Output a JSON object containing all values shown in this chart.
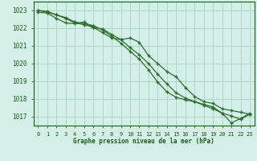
{
  "title": "Graphe pression niveau de la mer (hPa)",
  "background_color": "#d4eee8",
  "grid_color": "#b0d4cc",
  "line_color": "#2d6e2d",
  "text_color": "#1a5c1a",
  "xlim": [
    -0.5,
    23.5
  ],
  "ylim": [
    1016.5,
    1023.5
  ],
  "yticks": [
    1017,
    1018,
    1019,
    1020,
    1021,
    1022,
    1023
  ],
  "xticks": [
    0,
    1,
    2,
    3,
    4,
    5,
    6,
    7,
    8,
    9,
    10,
    11,
    12,
    13,
    14,
    15,
    16,
    17,
    18,
    19,
    20,
    21,
    22,
    23
  ],
  "series1_x": [
    0,
    1,
    2,
    3,
    4,
    5,
    6,
    7,
    8,
    9,
    10,
    11,
    12,
    13,
    14,
    15,
    16,
    17,
    18,
    19,
    20,
    21,
    22,
    23
  ],
  "series1_y": [
    1023.0,
    1022.95,
    1022.75,
    1022.6,
    1022.35,
    1022.25,
    1022.15,
    1021.9,
    1021.55,
    1021.15,
    1020.7,
    1020.25,
    1019.65,
    1018.95,
    1018.4,
    1018.1,
    1017.95,
    1017.85,
    1017.7,
    1017.55,
    1017.2,
    1016.65,
    1016.9,
    1017.2
  ],
  "series2_x": [
    0,
    1,
    2,
    3,
    4,
    5,
    6,
    7,
    8,
    9,
    10,
    11,
    12,
    13,
    14,
    15,
    16,
    17,
    18,
    19,
    20,
    21,
    22,
    23
  ],
  "series2_y": [
    1022.9,
    1022.85,
    1022.55,
    1022.3,
    1022.25,
    1022.35,
    1022.05,
    1021.75,
    1021.45,
    1021.35,
    1021.45,
    1021.2,
    1020.45,
    1020.0,
    1019.55,
    1019.25,
    1018.65,
    1018.15,
    1017.85,
    1017.75,
    1017.45,
    1017.35,
    1017.25,
    1017.15
  ],
  "series3_x": [
    0,
    1,
    2,
    3,
    4,
    5,
    6,
    7,
    8,
    9,
    10,
    11,
    12,
    13,
    14,
    15,
    16,
    17,
    18,
    19,
    20,
    21,
    22,
    23
  ],
  "series3_y": [
    1023.0,
    1022.9,
    1022.75,
    1022.55,
    1022.3,
    1022.2,
    1022.05,
    1021.95,
    1021.65,
    1021.35,
    1020.9,
    1020.5,
    1020.0,
    1019.4,
    1018.85,
    1018.35,
    1018.05,
    1017.85,
    1017.65,
    1017.45,
    1017.2,
    1017.05,
    1016.85,
    1017.15
  ]
}
